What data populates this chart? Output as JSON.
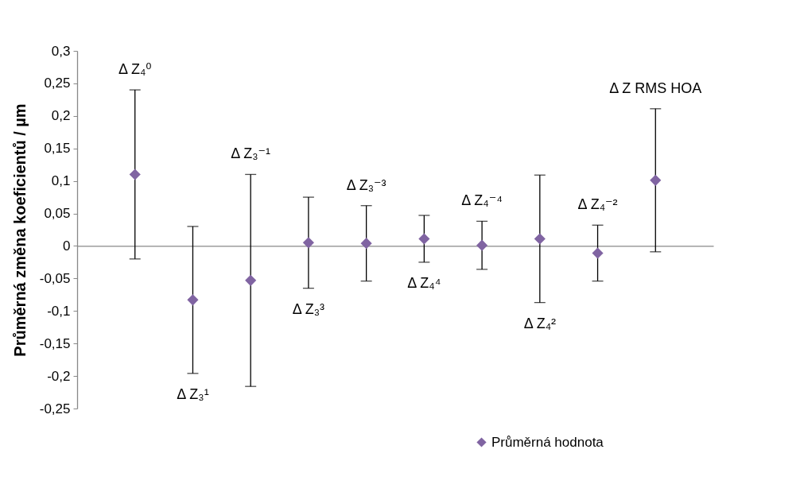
{
  "chart_data": {
    "type": "scatter",
    "ylabel": "Průměrná změna koeficientů / µm",
    "categories": [
      null,
      null,
      null,
      null,
      null,
      null,
      null,
      null,
      null,
      null
    ],
    "series": [
      {
        "name": "Průměrná hodnota",
        "color": "#8064a2",
        "values": [
          0.11,
          -0.083,
          -0.053,
          0.005,
          0.004,
          0.011,
          0.001,
          0.011,
          -0.011,
          0.101
        ],
        "errors": [
          0.13,
          0.113,
          0.163,
          0.07,
          0.058,
          0.036,
          0.037,
          0.098,
          0.043,
          0.11
        ]
      }
    ],
    "ylim": [
      -0.25,
      0.3
    ],
    "yticks": [
      {
        "value": -0.25,
        "label": "-0,25"
      },
      {
        "value": -0.2,
        "label": "-0,2"
      },
      {
        "value": -0.15,
        "label": "-0,15"
      },
      {
        "value": -0.1,
        "label": "-0,1"
      },
      {
        "value": -0.05,
        "label": "-0,05"
      },
      {
        "value": 0,
        "label": "0"
      },
      {
        "value": 0.05,
        "label": "0,05"
      },
      {
        "value": 0.1,
        "label": "0,1"
      },
      {
        "value": 0.15,
        "label": "0,15"
      },
      {
        "value": 0.2,
        "label": "0,2"
      },
      {
        "value": 0.25,
        "label": "0,25"
      },
      {
        "value": 0.3,
        "label": "0,3"
      }
    ],
    "marker": "diamond",
    "legend": "bottom right",
    "annotations": [
      "Δ Z₄⁰",
      "Δ Z₃¹",
      "Δ Z₃⁻¹",
      "Δ Z₃³",
      "Δ Z₃⁻³",
      "Δ Z₄⁴",
      "Δ Z₄⁻⁴",
      "Δ Z₄²",
      "Δ Z₄⁻²",
      "Δ Z RMS HOA"
    ]
  }
}
